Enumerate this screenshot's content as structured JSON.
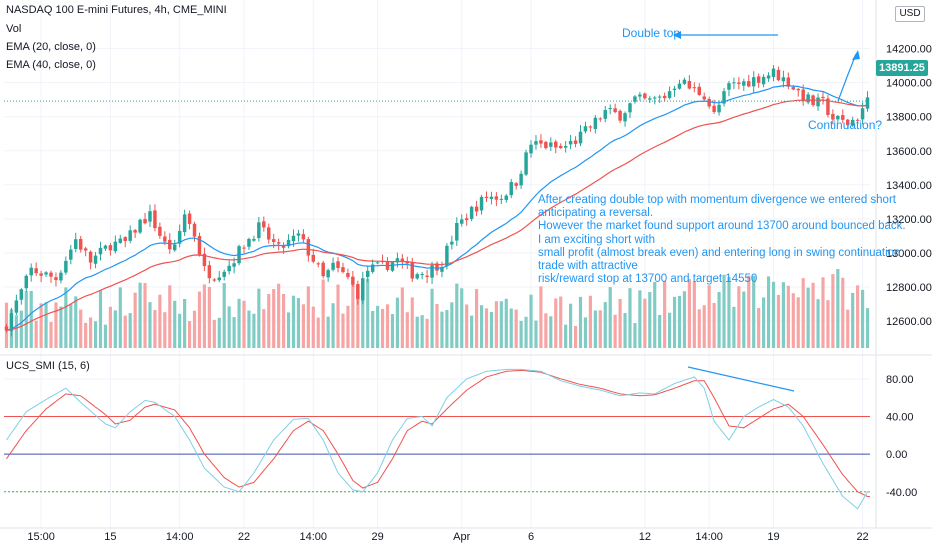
{
  "header": {
    "title": "NASDAQ 100 E-mini Futures, 4h, CME_MINI",
    "vol_label": "Vol",
    "ema_fast_label": "EMA (20, close, 0)",
    "ema_slow_label": "EMA (40, close, 0)",
    "indicator_label": "UCS_SMI (15, 6)",
    "currency": "USD"
  },
  "price_tag": "13891.25",
  "annotations": {
    "double_top": "Double top",
    "continuation": "Continuation?",
    "note_lines": [
      "After creating double top with momentum divergence we entered short",
      "anticipating a reversal.",
      "However the market found support around 13700 around bounced back.",
      "I am exciting short with",
      "small profit (almost break even) and entering long in swing continuation",
      "trade with attractive",
      "risk/reward stop at 13700 and target 14550"
    ]
  },
  "colors": {
    "up": "#26a69a",
    "down": "#ef5350",
    "vol_up": "#80cbc4",
    "vol_down": "#f6a5a4",
    "ema_fast": "#2196f3",
    "ema_slow": "#ef5350",
    "annotation": "#2196f3",
    "smi_fast": "#7fcfe6",
    "smi_slow": "#ef5350",
    "level_upper": "#ef5350",
    "level_zero": "#3f51b5",
    "level_lower": "#4caf50"
  },
  "chart_data": {
    "type": "candlestick",
    "price_axis": {
      "ylim": [
        12430,
        14450
      ],
      "ticks": [
        12600,
        12800,
        13000,
        13200,
        13400,
        13600,
        13800,
        14000,
        14200
      ]
    },
    "price_tick_labels": [
      "12600.00",
      "12800.00",
      "13000.00",
      "13200.00",
      "13400.00",
      "13600.00",
      "13800.00",
      "14000.00",
      "14200.00"
    ],
    "time_axis": {
      "labels": [
        "15:00",
        "15",
        "14:00",
        "22",
        "14:00",
        "29",
        "Apr",
        "6",
        "12",
        "14:00",
        "19",
        "22"
      ],
      "label_bars": [
        7,
        21,
        35,
        48,
        62,
        75,
        92,
        106,
        129,
        142,
        155,
        173
      ]
    },
    "bar_count": 175,
    "price_anchors": [
      [
        0,
        12580
      ],
      [
        5,
        12900
      ],
      [
        10,
        12850
      ],
      [
        14,
        13080
      ],
      [
        17,
        12950
      ],
      [
        21,
        13050
      ],
      [
        24,
        13060
      ],
      [
        27,
        13180
      ],
      [
        29,
        13220
      ],
      [
        32,
        13050
      ],
      [
        34,
        13020
      ],
      [
        36,
        13230
      ],
      [
        38,
        13110
      ],
      [
        40,
        12900
      ],
      [
        42,
        12870
      ],
      [
        45,
        12930
      ],
      [
        48,
        13050
      ],
      [
        51,
        13150
      ],
      [
        55,
        13020
      ],
      [
        59,
        13100
      ],
      [
        62,
        12960
      ],
      [
        64,
        12850
      ],
      [
        66,
        12920
      ],
      [
        69,
        12850
      ],
      [
        71,
        12760
      ],
      [
        73,
        12900
      ],
      [
        76,
        12920
      ],
      [
        79,
        12960
      ],
      [
        82,
        12880
      ],
      [
        85,
        12890
      ],
      [
        88,
        12950
      ],
      [
        91,
        13150
      ],
      [
        94,
        13250
      ],
      [
        97,
        13330
      ],
      [
        100,
        13330
      ],
      [
        103,
        13420
      ],
      [
        106,
        13640
      ],
      [
        109,
        13630
      ],
      [
        112,
        13610
      ],
      [
        115,
        13660
      ],
      [
        118,
        13740
      ],
      [
        121,
        13830
      ],
      [
        124,
        13810
      ],
      [
        127,
        13900
      ],
      [
        130,
        13890
      ],
      [
        133,
        13920
      ],
      [
        136,
        14020
      ],
      [
        138,
        13970
      ],
      [
        141,
        13930
      ],
      [
        143,
        13810
      ],
      [
        146,
        13980
      ],
      [
        149,
        14000
      ],
      [
        152,
        14030
      ],
      [
        155,
        14060
      ],
      [
        158,
        14000
      ],
      [
        161,
        13920
      ],
      [
        163,
        13880
      ],
      [
        165,
        13880
      ],
      [
        167,
        13790
      ],
      [
        170,
        13760
      ],
      [
        172,
        13800
      ],
      [
        174,
        13890
      ]
    ],
    "vol_anchors": [
      [
        0,
        0.4
      ],
      [
        10,
        0.5
      ],
      [
        20,
        0.45
      ],
      [
        28,
        0.55
      ],
      [
        40,
        0.5
      ],
      [
        55,
        0.5
      ],
      [
        70,
        0.6
      ],
      [
        80,
        0.55
      ],
      [
        92,
        0.5
      ],
      [
        105,
        0.48
      ],
      [
        120,
        0.45
      ],
      [
        130,
        0.5
      ],
      [
        140,
        0.6
      ],
      [
        150,
        0.6
      ],
      [
        160,
        0.75
      ],
      [
        170,
        0.65
      ],
      [
        174,
        0.5
      ]
    ],
    "smi_axis": {
      "ylim": [
        -70,
        100
      ],
      "ticks": [
        80,
        40,
        0,
        -40
      ]
    },
    "smi_tick_labels": [
      "80.00",
      "40.00",
      "0.00",
      "-40.00"
    ],
    "smi_levels": {
      "upper": 40,
      "zero": 0,
      "lower": -40
    },
    "smi_fast": [
      [
        0,
        15
      ],
      [
        4,
        45
      ],
      [
        8,
        58
      ],
      [
        12,
        70
      ],
      [
        15,
        55
      ],
      [
        20,
        32
      ],
      [
        22,
        28
      ],
      [
        25,
        45
      ],
      [
        28,
        57
      ],
      [
        30,
        55
      ],
      [
        34,
        40
      ],
      [
        37,
        15
      ],
      [
        40,
        -15
      ],
      [
        44,
        -35
      ],
      [
        47,
        -40
      ],
      [
        50,
        -20
      ],
      [
        54,
        15
      ],
      [
        58,
        37
      ],
      [
        61,
        38
      ],
      [
        64,
        15
      ],
      [
        67,
        -20
      ],
      [
        70,
        -38
      ],
      [
        72,
        -40
      ],
      [
        75,
        -20
      ],
      [
        78,
        15
      ],
      [
        81,
        38
      ],
      [
        84,
        40
      ],
      [
        86,
        30
      ],
      [
        89,
        60
      ],
      [
        93,
        80
      ],
      [
        97,
        88
      ],
      [
        101,
        90
      ],
      [
        104,
        90
      ],
      [
        108,
        88
      ],
      [
        112,
        78
      ],
      [
        116,
        72
      ],
      [
        120,
        68
      ],
      [
        124,
        62
      ],
      [
        128,
        65
      ],
      [
        131,
        64
      ],
      [
        135,
        75
      ],
      [
        139,
        82
      ],
      [
        141,
        70
      ],
      [
        143,
        35
      ],
      [
        146,
        15
      ],
      [
        149,
        40
      ],
      [
        152,
        50
      ],
      [
        155,
        58
      ],
      [
        158,
        50
      ],
      [
        161,
        30
      ],
      [
        165,
        -10
      ],
      [
        169,
        -45
      ],
      [
        172,
        -58
      ],
      [
        174,
        -40
      ]
    ],
    "smi_slow": [
      [
        0,
        -5
      ],
      [
        4,
        25
      ],
      [
        8,
        48
      ],
      [
        12,
        64
      ],
      [
        15,
        62
      ],
      [
        20,
        42
      ],
      [
        22,
        32
      ],
      [
        25,
        36
      ],
      [
        28,
        50
      ],
      [
        30,
        53
      ],
      [
        34,
        47
      ],
      [
        37,
        28
      ],
      [
        40,
        0
      ],
      [
        44,
        -25
      ],
      [
        47,
        -35
      ],
      [
        50,
        -30
      ],
      [
        54,
        -5
      ],
      [
        58,
        25
      ],
      [
        61,
        35
      ],
      [
        64,
        25
      ],
      [
        67,
        0
      ],
      [
        70,
        -28
      ],
      [
        72,
        -36
      ],
      [
        75,
        -30
      ],
      [
        78,
        -5
      ],
      [
        81,
        25
      ],
      [
        84,
        35
      ],
      [
        86,
        32
      ],
      [
        89,
        48
      ],
      [
        93,
        68
      ],
      [
        97,
        82
      ],
      [
        101,
        88
      ],
      [
        104,
        89
      ],
      [
        108,
        87
      ],
      [
        112,
        80
      ],
      [
        116,
        74
      ],
      [
        120,
        70
      ],
      [
        124,
        64
      ],
      [
        128,
        62
      ],
      [
        131,
        63
      ],
      [
        135,
        70
      ],
      [
        139,
        78
      ],
      [
        141,
        78
      ],
      [
        143,
        60
      ],
      [
        146,
        30
      ],
      [
        149,
        28
      ],
      [
        152,
        38
      ],
      [
        155,
        48
      ],
      [
        158,
        53
      ],
      [
        161,
        40
      ],
      [
        165,
        10
      ],
      [
        169,
        -22
      ],
      [
        172,
        -40
      ],
      [
        174,
        -45
      ]
    ]
  }
}
